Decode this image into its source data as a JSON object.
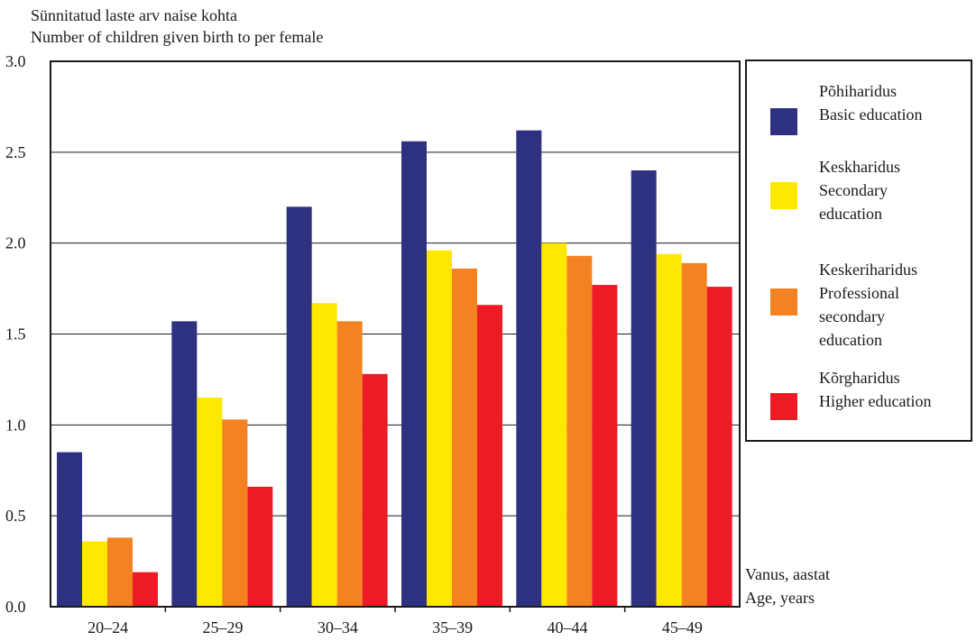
{
  "chart_data": {
    "type": "bar",
    "ylabel_lines": [
      "Sünnitatud laste arv naise kohta",
      "Number of children given birth to per female"
    ],
    "xlabel_lines": [
      "Vanus, aastat",
      "Age, years"
    ],
    "categories": [
      "20–24",
      "25–29",
      "30–34",
      "35–39",
      "40–44",
      "45–49"
    ],
    "ylim": [
      0,
      3
    ],
    "yticks": [
      "0.0",
      "0.5",
      "1.0",
      "1.5",
      "2.0",
      "2.5",
      "3.0"
    ],
    "grid": true,
    "legend_position": "right",
    "series": [
      {
        "name_lines": [
          "Põhiharidus",
          "Basic education"
        ],
        "color": "#2e3080",
        "values": [
          0.85,
          1.57,
          2.2,
          2.56,
          2.62,
          2.4
        ]
      },
      {
        "name_lines": [
          "Keskharidus",
          "Secondary",
          "education"
        ],
        "color": "#ffe800",
        "values": [
          0.36,
          1.15,
          1.67,
          1.96,
          2.0,
          1.94
        ]
      },
      {
        "name_lines": [
          "Keskeriharidus",
          "Professional",
          "secondary",
          "education"
        ],
        "color": "#f58220",
        "values": [
          0.38,
          1.03,
          1.57,
          1.86,
          1.93,
          1.89
        ]
      },
      {
        "name_lines": [
          "Kõrgharidus",
          "Higher education"
        ],
        "color": "#ed1c24",
        "values": [
          0.19,
          0.66,
          1.28,
          1.66,
          1.77,
          1.76
        ]
      }
    ]
  }
}
